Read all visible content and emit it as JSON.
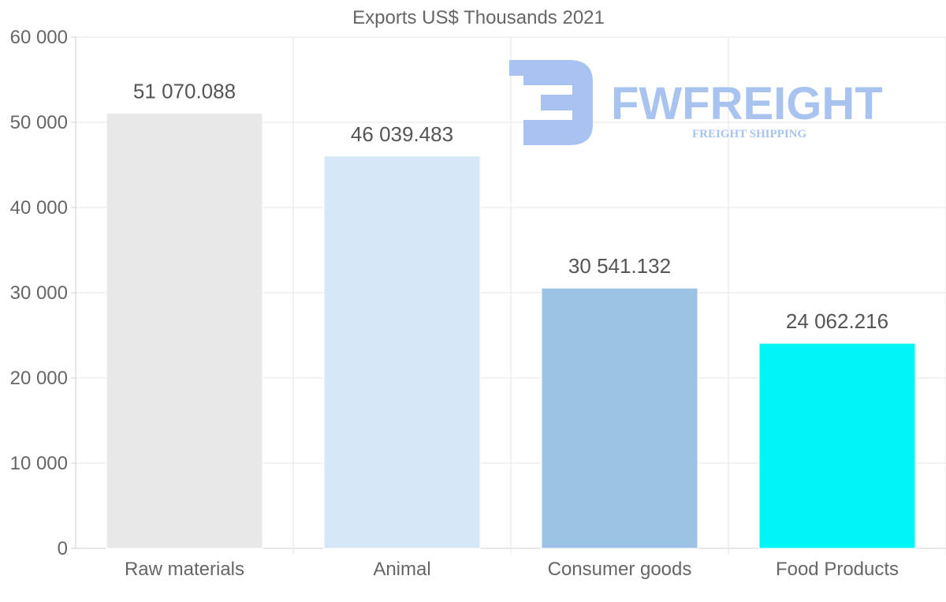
{
  "chart_data": {
    "type": "bar",
    "title": "Exports US$ Thousands 2021",
    "xlabel": "",
    "ylabel": "",
    "categories": [
      "Raw materials",
      "Animal",
      "Consumer goods",
      "Food Products"
    ],
    "values": [
      51070.088,
      46039.483,
      30541.132,
      24062.216
    ],
    "value_labels": [
      "51 070.088",
      "46 039.483",
      "30 541.132",
      "24 062.216"
    ],
    "bar_colors": [
      "#e8e8e8",
      "#d6e7f8",
      "#9cc3e6",
      "#00f6f6"
    ],
    "ylim": [
      0,
      60000
    ],
    "yticks": [
      0,
      10000,
      20000,
      30000,
      40000,
      50000,
      60000
    ],
    "ytick_labels": [
      "0",
      "10 000",
      "20 000",
      "30 000",
      "40 000",
      "50 000",
      "60 000"
    ],
    "grid": true,
    "legend": "none"
  },
  "watermark": {
    "name": "FWFREIGHT",
    "tagline": "FREIGHT SHIPPING",
    "color": "#a9c3f0"
  }
}
